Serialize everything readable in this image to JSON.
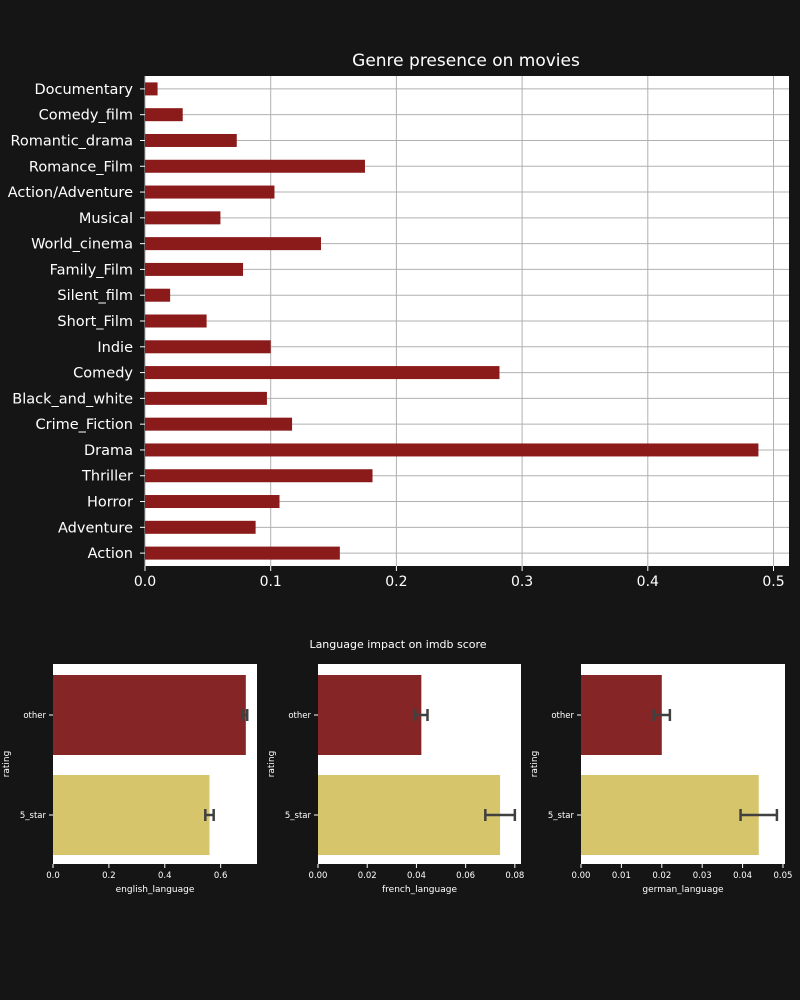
{
  "colors": {
    "background": "#151515",
    "plot_bg": "#ffffff",
    "bar_red": "#8b1a1a",
    "bar_red_light": "#862525",
    "bar_yellow": "#d6c56a",
    "grid": "#b0b0b0",
    "errorbar": "#404040",
    "text": "#ffffff"
  },
  "chart_data": [
    {
      "type": "bar",
      "orientation": "horizontal",
      "title": "Genre presence on movies",
      "categories": [
        "Documentary",
        "Comedy_film",
        "Romantic_drama",
        "Romance_Film",
        "Action/Adventure",
        "Musical",
        "World_cinema",
        "Family_Film",
        "Silent_film",
        "Short_Film",
        "Indie",
        "Comedy",
        "Black_and_white",
        "Crime_Fiction",
        "Drama",
        "Thriller",
        "Horror",
        "Adventure",
        "Action"
      ],
      "values": [
        0.01,
        0.03,
        0.073,
        0.175,
        0.103,
        0.06,
        0.14,
        0.078,
        0.02,
        0.049,
        0.1,
        0.282,
        0.097,
        0.117,
        0.488,
        0.181,
        0.107,
        0.088,
        0.155
      ],
      "xticks": [
        "0.0",
        "0.1",
        "0.2",
        "0.3",
        "0.4",
        "0.5"
      ],
      "xlim": [
        0,
        0.513
      ],
      "xlabel": "",
      "ylabel": "",
      "grid": true
    },
    {
      "type": "bar",
      "orientation": "horizontal",
      "suptitle": "Language impact on imdb score",
      "categories": [
        "other",
        "5_star"
      ],
      "ylabel": "rating",
      "subplots": [
        {
          "xlabel": "english_language",
          "values": [
            0.69,
            0.56
          ],
          "errors": [
            [
              0.68,
              0.695
            ],
            [
              0.545,
              0.575
            ]
          ],
          "xlim": [
            0,
            0.73
          ],
          "xticks": [
            "0.0",
            "0.2",
            "0.4",
            "0.6"
          ]
        },
        {
          "xlabel": "french_language",
          "values": [
            0.042,
            0.074
          ],
          "errors": [
            [
              0.0395,
              0.0445
            ],
            [
              0.068,
              0.08
            ]
          ],
          "xlim": [
            0,
            0.0825
          ],
          "xticks": [
            "0.00",
            "0.02",
            "0.04",
            "0.06",
            "0.08"
          ]
        },
        {
          "xlabel": "german_language",
          "values": [
            0.02,
            0.044
          ],
          "errors": [
            [
              0.018,
              0.022
            ],
            [
              0.0395,
              0.0485
            ]
          ],
          "xlim": [
            0,
            0.0505
          ],
          "xticks": [
            "0.00",
            "0.01",
            "0.02",
            "0.03",
            "0.04",
            "0.05"
          ]
        }
      ],
      "bar_colors": [
        "red",
        "yellow"
      ]
    }
  ]
}
